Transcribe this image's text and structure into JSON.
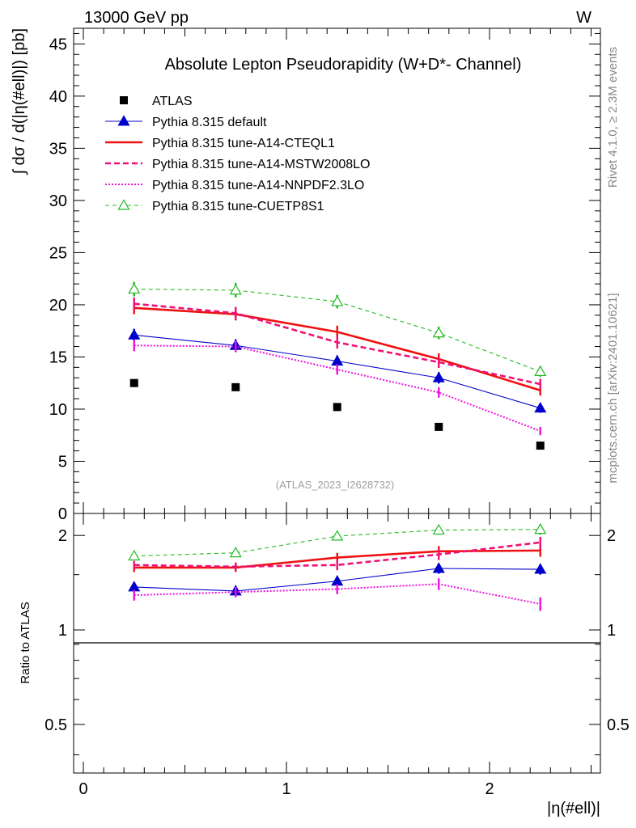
{
  "header": {
    "left": "13000 GeV pp",
    "right": "W"
  },
  "side_texts": {
    "rivet": "Rivet 4.1.0, ≥ 2.3M events",
    "mcplots": "mcplots.cern.ch [arXiv:2401.10621]"
  },
  "chart_data": [
    {
      "type": "line",
      "title": "Absolute Lepton Pseudorapidity (W+D*- Channel)",
      "ylabel": "∫ dσ / d(|η(#ell)|) [pb]",
      "xlabel": "|η(#ell)|",
      "xlim": [
        -0.05,
        2.55
      ],
      "ylim": [
        0,
        46.5
      ],
      "yticks": [
        0,
        5,
        10,
        15,
        20,
        25,
        30,
        35,
        40,
        45
      ],
      "analysis_label": "(ATLAS_2023_I2628732)",
      "legend_position": "top-left",
      "x": [
        0.25,
        0.75,
        1.25,
        1.75,
        2.25
      ],
      "series": [
        {
          "name": "ATLAS",
          "color": "#000000",
          "style": "data",
          "values": [
            12.5,
            12.1,
            10.2,
            8.3,
            6.5
          ],
          "errors": [
            0,
            0,
            0,
            0,
            0
          ]
        },
        {
          "name": "Pythia 8.315 default",
          "color": "#0000cc",
          "style": "solid-thin-filled-triangle",
          "values": [
            17.1,
            16.1,
            14.6,
            13.0,
            10.1
          ],
          "errors": [
            0.6,
            0.6,
            0.55,
            0.55,
            0.45
          ]
        },
        {
          "name": "Pythia 8.315 tune-A14-CTEQL1",
          "color": "#ee1111",
          "style": "solid-thick",
          "values": [
            19.7,
            19.1,
            17.4,
            14.8,
            11.8
          ],
          "errors": [
            0.6,
            0.6,
            0.6,
            0.55,
            0.5
          ]
        },
        {
          "name": "Pythia 8.315 tune-A14-MSTW2008LO",
          "color": "#ee1177",
          "style": "dashed-thick",
          "values": [
            20.1,
            19.2,
            16.4,
            14.5,
            12.4
          ],
          "errors": [
            0.6,
            0.6,
            0.6,
            0.55,
            0.5
          ]
        },
        {
          "name": "Pythia 8.315 tune-A14-NNPDF2.3LO",
          "color": "#ee11dd",
          "style": "dotted",
          "values": [
            16.1,
            16.0,
            13.8,
            11.6,
            7.9
          ],
          "errors": [
            0.55,
            0.55,
            0.5,
            0.5,
            0.4
          ]
        },
        {
          "name": "Pythia 8.315 tune-CUETP8S1",
          "color": "#22bb22",
          "style": "dashed-thin-open-triangle",
          "values": [
            21.5,
            21.4,
            20.3,
            17.3,
            13.6
          ],
          "errors": [
            0.7,
            0.7,
            0.65,
            0.6,
            0.5
          ]
        }
      ]
    },
    {
      "type": "line",
      "title": "",
      "ylabel": "Ratio to ATLAS",
      "xlabel": "|η(#ell)|",
      "ylim": [
        0.35,
        2.35
      ],
      "yscale": "log",
      "yticks": [
        0.5,
        1,
        2
      ],
      "ytick_labels": [
        "0.5",
        "1",
        "2"
      ],
      "xticks": [
        0,
        1,
        2
      ],
      "xtick_labels": [
        "0",
        "1",
        "2"
      ],
      "reference_line": 1,
      "x": [
        0.25,
        0.75,
        1.25,
        1.75,
        2.25
      ],
      "series": [
        {
          "name": "Pythia 8.315 default",
          "values": [
            1.37,
            1.33,
            1.43,
            1.57,
            1.56
          ],
          "errors": [
            0.05,
            0.05,
            0.05,
            0.06,
            0.06
          ]
        },
        {
          "name": "Pythia 8.315 tune-A14-CTEQL1",
          "values": [
            1.58,
            1.58,
            1.7,
            1.78,
            1.79
          ],
          "errors": [
            0.05,
            0.05,
            0.06,
            0.07,
            0.08
          ]
        },
        {
          "name": "Pythia 8.315 tune-A14-MSTW2008LO",
          "values": [
            1.61,
            1.59,
            1.61,
            1.74,
            1.9
          ],
          "errors": [
            0.05,
            0.05,
            0.06,
            0.07,
            0.08
          ]
        },
        {
          "name": "Pythia 8.315 tune-A14-NNPDF2.3LO",
          "values": [
            1.29,
            1.32,
            1.35,
            1.4,
            1.21
          ],
          "errors": [
            0.05,
            0.05,
            0.05,
            0.06,
            0.06
          ]
        },
        {
          "name": "Pythia 8.315 tune-CUETP8S1",
          "values": [
            1.72,
            1.76,
            1.99,
            2.08,
            2.09
          ],
          "errors": [
            0.05,
            0.05,
            0.06,
            0.07,
            0.08
          ]
        }
      ]
    }
  ]
}
